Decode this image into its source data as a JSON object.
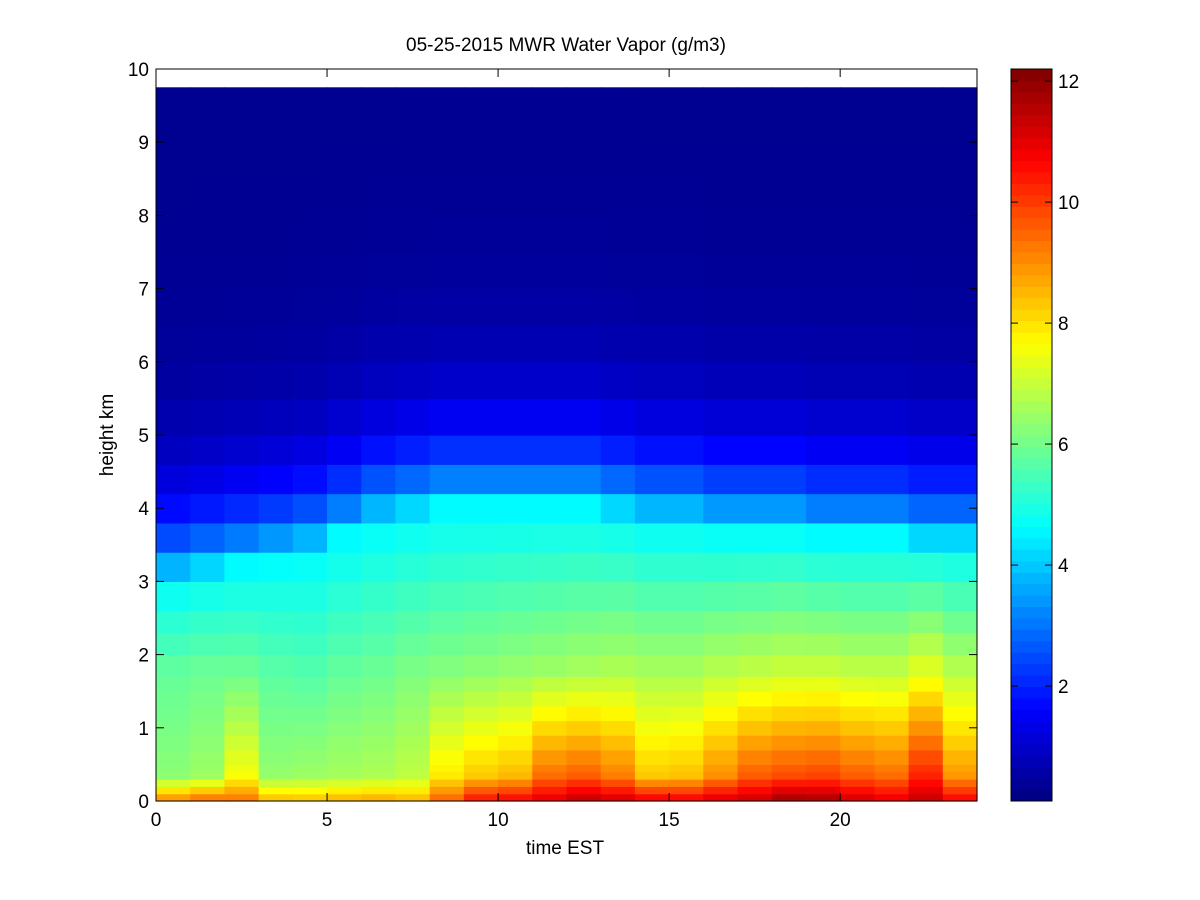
{
  "chart_data": {
    "type": "heatmap",
    "title": "05-25-2015 MWR Water Vapor (g/m3)",
    "xlabel": "time EST",
    "ylabel": "height km",
    "xlim": [
      0,
      24
    ],
    "ylim": [
      0,
      10
    ],
    "x_ticks": [
      "0",
      "5",
      "10",
      "15",
      "20"
    ],
    "y_ticks": [
      "0",
      "1",
      "2",
      "3",
      "4",
      "5",
      "6",
      "7",
      "8",
      "9",
      "10"
    ],
    "colorbar": {
      "colormap": "jet",
      "clim": [
        0.1,
        12.2
      ],
      "ticks": [
        "2",
        "4",
        "6",
        "8",
        "10",
        "12"
      ]
    },
    "grid": false,
    "time_hours": [
      0,
      1,
      2,
      3,
      4,
      5,
      6,
      7,
      8,
      9,
      10,
      11,
      12,
      13,
      14,
      15,
      16,
      17,
      18,
      19,
      20,
      21,
      22,
      23
    ],
    "height_km": [
      0.0,
      0.1,
      0.2,
      0.3,
      0.4,
      0.5,
      0.7,
      0.9,
      1.1,
      1.3,
      1.5,
      1.7,
      2.0,
      2.3,
      2.6,
      3.0,
      3.4,
      3.8,
      4.2,
      4.6,
      5.0,
      5.5,
      6.0,
      6.5,
      7.0,
      7.5,
      8.0,
      8.5,
      9.0,
      9.75
    ],
    "surface_vapor_gm3": [
      9.2,
      9.6,
      9.4,
      8.6,
      8.5,
      8.7,
      8.8,
      8.6,
      9.6,
      10.6,
      10.8,
      11.1,
      11.5,
      11.3,
      11.0,
      10.9,
      11.2,
      11.4,
      11.9,
      11.8,
      11.3,
      11.0,
      11.4,
      10.8
    ],
    "low_level_vapor_gm3": [
      6.3,
      6.5,
      7.6,
      6.4,
      6.5,
      6.6,
      6.7,
      6.9,
      7.9,
      8.3,
      8.5,
      9.4,
      9.6,
      9.2,
      8.3,
      8.4,
      9.0,
      9.6,
      9.8,
      9.9,
      9.6,
      9.4,
      10.3,
      8.9
    ],
    "mid_level_vapor_gm3": [
      5.8,
      5.9,
      5.9,
      5.7,
      5.6,
      5.8,
      5.9,
      6.1,
      6.2,
      6.3,
      6.4,
      6.5,
      6.6,
      6.7,
      6.6,
      6.6,
      6.8,
      6.9,
      7.0,
      7.0,
      6.9,
      6.9,
      7.3,
      6.8
    ],
    "moist_layer_top_km": [
      3.0,
      3.1,
      3.2,
      3.3,
      3.4,
      3.6,
      3.8,
      3.9,
      4.0,
      4.0,
      4.0,
      4.0,
      4.0,
      3.9,
      3.8,
      3.8,
      3.7,
      3.7,
      3.7,
      3.6,
      3.6,
      3.6,
      3.5,
      3.5
    ]
  }
}
